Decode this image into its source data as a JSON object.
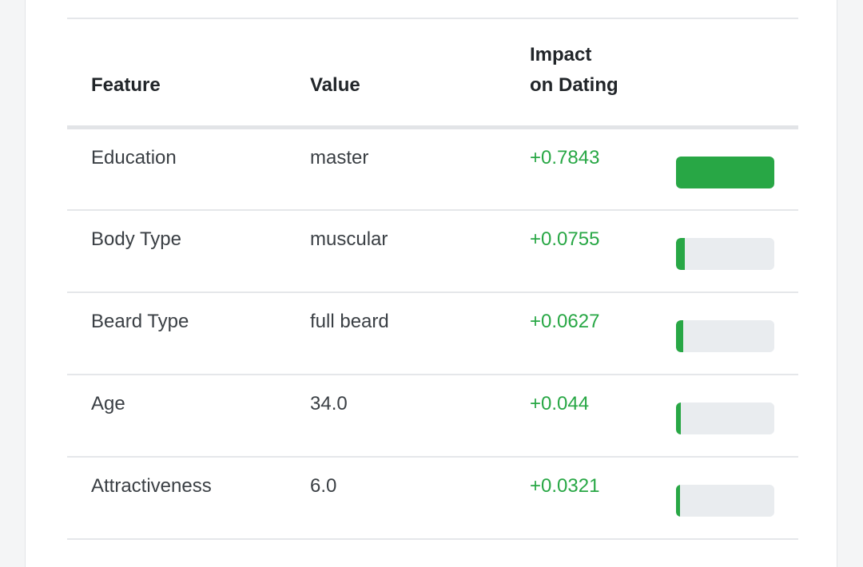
{
  "table": {
    "headers": {
      "feature": "Feature",
      "value": "Value",
      "impact": "Impact on Dating"
    },
    "rows": [
      {
        "feature": "Education",
        "value": "master",
        "impact": "+0.7843",
        "bar_fraction": 1.0
      },
      {
        "feature": "Body Type",
        "value": "muscular",
        "impact": "+0.0755",
        "bar_fraction": 0.09
      },
      {
        "feature": "Beard Type",
        "value": "full beard",
        "impact": "+0.0627",
        "bar_fraction": 0.075
      },
      {
        "feature": "Age",
        "value": "34.0",
        "impact": "+0.044",
        "bar_fraction": 0.05
      },
      {
        "feature": "Attractiveness",
        "value": "6.0",
        "impact": "+0.0321",
        "bar_fraction": 0.04
      }
    ]
  },
  "colors": {
    "positive": "#28a745",
    "bar_track": "#e9ecef"
  }
}
